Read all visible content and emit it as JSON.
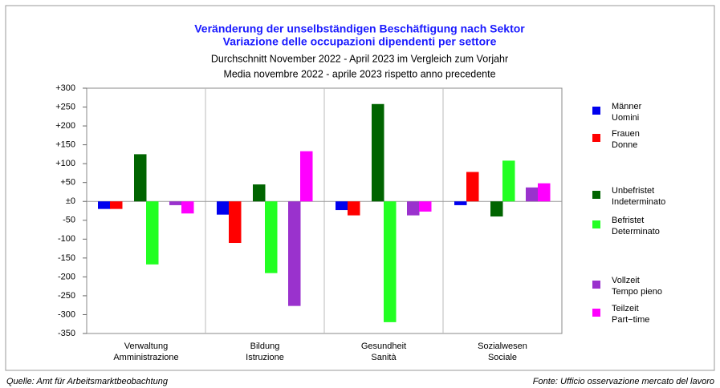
{
  "chart_data": {
    "type": "bar",
    "title": [
      "Veränderung der unselbständigen Beschäftigung nach Sektor",
      "Variazione delle occupazioni dipendenti per settore"
    ],
    "subtitle": [
      "Durchschnitt November 2022 - April 2023 im Vergleich zum Vorjahr",
      "Media novembre 2022 - aprile 2023 rispetto anno precedente"
    ],
    "categories": [
      [
        "Verwaltung",
        "Amministrazione"
      ],
      [
        "Bildung",
        "Istruzione"
      ],
      [
        "Gesundheit",
        "Sanità"
      ],
      [
        "Sozialwesen",
        "Sociale"
      ]
    ],
    "series": [
      {
        "name": [
          "Männer",
          "Uomini"
        ],
        "color": "#0000ee",
        "values": [
          -20,
          -35,
          -23,
          -10
        ]
      },
      {
        "name": [
          "Frauen",
          "Donne"
        ],
        "color": "#ff0000",
        "values": [
          -20,
          -110,
          -37,
          78
        ]
      },
      {
        "name": [
          "Unbefristet",
          "Indeterminato"
        ],
        "color": "#006400",
        "values": [
          125,
          45,
          258,
          -40
        ]
      },
      {
        "name": [
          "Befristet",
          "Determinato"
        ],
        "color": "#22ff22",
        "values": [
          -167,
          -190,
          -320,
          108
        ]
      },
      {
        "name": [
          "Vollzeit",
          "Tempo pieno"
        ],
        "color": "#9a32cd",
        "values": [
          -10,
          -277,
          -37,
          37
        ]
      },
      {
        "name": [
          "Teilzeit",
          "Part−time"
        ],
        "color": "#ff00ff",
        "values": [
          -32,
          133,
          -27,
          48
        ]
      }
    ],
    "ylim": [
      -350,
      300
    ],
    "yticks": [
      {
        "value": 300,
        "label": "+300"
      },
      {
        "value": 250,
        "label": "+250"
      },
      {
        "value": 200,
        "label": "+200"
      },
      {
        "value": 150,
        "label": "+150"
      },
      {
        "value": 100,
        "label": "+100"
      },
      {
        "value": 50,
        "label": "+50"
      },
      {
        "value": 0,
        "label": "±0"
      },
      -50,
      -100,
      -150,
      -200,
      -250,
      -300,
      -350
    ],
    "source_left": "Quelle: Amt für Arbeitsmarktbeobachtung",
    "source_right": "Fonte: Ufficio osservazione mercato del lavoro"
  }
}
